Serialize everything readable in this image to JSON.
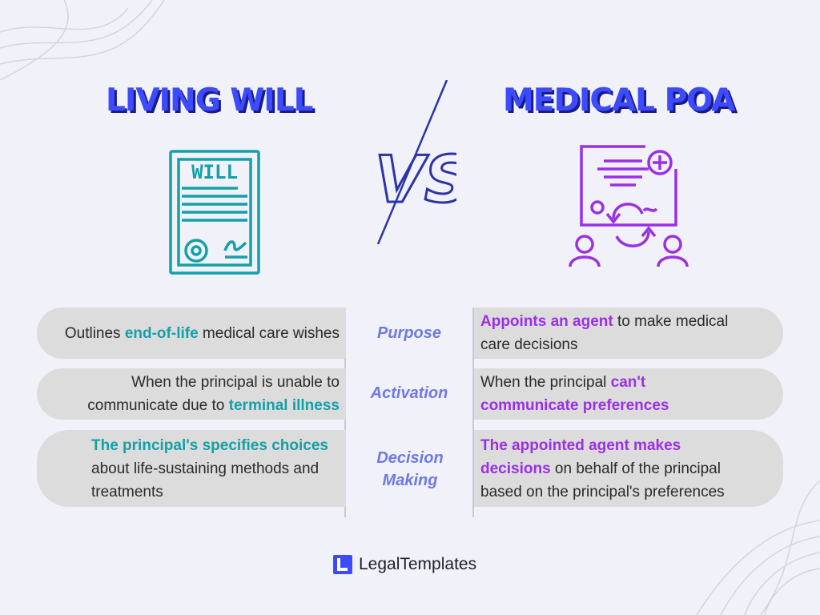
{
  "left": {
    "title": "LIVING WILL",
    "icon": "will-document-icon",
    "accent": "#14a0a8"
  },
  "right": {
    "title": "MEDICAL POA",
    "icon": "medical-poa-document-icon",
    "accent": "#9b2fe6"
  },
  "vs_label": "VS",
  "icon_text": "WILL",
  "rows": [
    {
      "label": "Purpose",
      "left": {
        "pre": "Outlines ",
        "highlight": "end-of-life",
        "post": " medical care wishes"
      },
      "right": {
        "pre": "",
        "highlight": "Appoints an agent",
        "post": " to make medical care decisions"
      }
    },
    {
      "label": "Activation",
      "left": {
        "pre": "When the principal is unable to communicate due to ",
        "highlight": "terminal illness",
        "post": ""
      },
      "right": {
        "pre": "When the principal ",
        "highlight": "can't communicate preferences",
        "post": ""
      }
    },
    {
      "label": "Decision Making",
      "left": {
        "pre": "",
        "highlight": "The principal's specifies choices",
        "post": " about life-sustaining methods and treatments"
      },
      "right": {
        "pre": "",
        "highlight": "The appointed agent makes decisions",
        "post": " on behalf of the principal based on the principal's preferences"
      }
    }
  ],
  "footer": {
    "brand": "LegalTemplates",
    "icon": "legaltemplates-logo-icon",
    "color": "#3d4bff"
  }
}
